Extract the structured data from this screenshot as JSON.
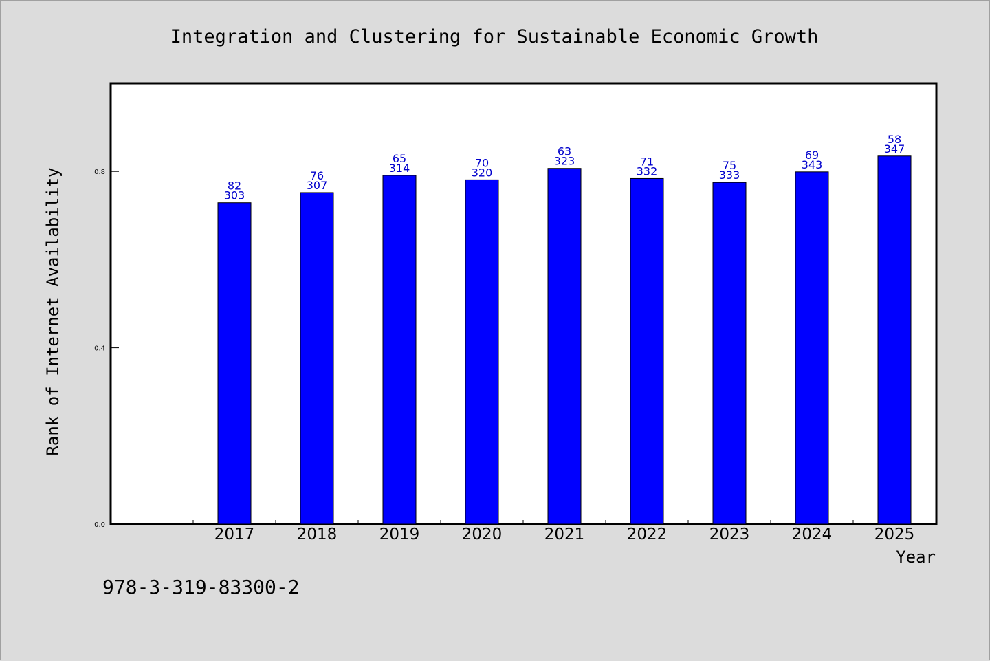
{
  "chart_data": {
    "type": "bar",
    "title": "Integration and Clustering for Sustainable Economic Growth",
    "xlabel": "Year",
    "ylabel": "Rank of Internet Availability",
    "categories": [
      "2017",
      "2018",
      "2019",
      "2020",
      "2021",
      "2022",
      "2023",
      "2024",
      "2025"
    ],
    "series": [
      {
        "values": [
          0.729,
          0.752,
          0.791,
          0.781,
          0.807,
          0.784,
          0.775,
          0.799,
          0.835
        ],
        "labels_top": [
          "82",
          "76",
          "65",
          "70",
          "63",
          "71",
          "75",
          "69",
          "58"
        ],
        "labels_bottom": [
          "303",
          "307",
          "314",
          "320",
          "323",
          "332",
          "333",
          "343",
          "347"
        ],
        "color": "#0000ff"
      }
    ],
    "yticks": [
      "0.0",
      "0.4",
      "0.8"
    ],
    "ylim": [
      0.0,
      1.0
    ],
    "grid": false,
    "legend": "none"
  },
  "footnote": "978-3-319-83300-2",
  "colors": {
    "background": "#dcdcdc",
    "plot_area": "#ffffff",
    "bar": "#0000ff",
    "bar_label": "#0000cc"
  }
}
